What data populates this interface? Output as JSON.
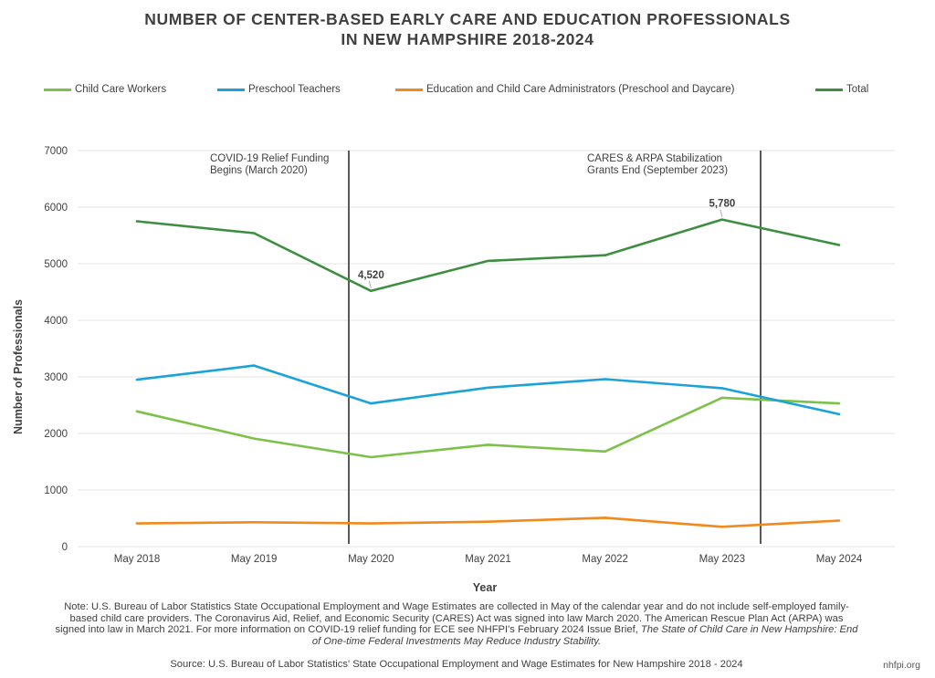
{
  "title_line1": "NUMBER OF CENTER-BASED EARLY CARE AND EDUCATION PROFESSIONALS",
  "title_line2": "IN NEW HAMPSHIRE 2018-2024",
  "legend": [
    {
      "label": "Child Care Workers",
      "color": "#7dc14a"
    },
    {
      "label": "Preschool Teachers",
      "color": "#1ba3d9"
    },
    {
      "label": "Education and Child Care Administrators (Preschool and Daycare)",
      "color": "#f2891d"
    },
    {
      "label": "Total",
      "color": "#3e8e41"
    }
  ],
  "chart_data": {
    "type": "line",
    "xlabel": "Year",
    "ylabel": "Number of Professionals",
    "categories": [
      "May 2018",
      "May 2019",
      "May 2020",
      "May 2021",
      "May 2022",
      "May 2023",
      "May 2024"
    ],
    "ylim": [
      0,
      7000
    ],
    "yticks": [
      0,
      1000,
      2000,
      3000,
      4000,
      5000,
      6000,
      7000
    ],
    "grid": true,
    "series": [
      {
        "name": "Child Care Workers",
        "color": "#7dc14a",
        "values": [
          2390,
          1910,
          1580,
          1800,
          1680,
          2630,
          2530
        ]
      },
      {
        "name": "Preschool Teachers",
        "color": "#1ba3d9",
        "values": [
          2950,
          3200,
          2530,
          2810,
          2960,
          2800,
          2340
        ]
      },
      {
        "name": "Education and Child Care Administrators (Preschool and Daycare)",
        "color": "#f2891d",
        "values": [
          410,
          430,
          410,
          440,
          510,
          350,
          460
        ]
      },
      {
        "name": "Total",
        "color": "#3e8e41",
        "values": [
          5750,
          5540,
          4520,
          5050,
          5150,
          5780,
          5330
        ]
      }
    ],
    "data_labels": [
      {
        "series": "Total",
        "category": "May 2020",
        "text": "4,520"
      },
      {
        "series": "Total",
        "category": "May 2023",
        "text": "5,780"
      }
    ],
    "annotations": [
      {
        "at": "between May 2019 and May 2020",
        "text_lines": [
          "COVID-19 Relief Funding",
          "Begins (March 2020)"
        ]
      },
      {
        "at": "between May 2023 and May 2024",
        "text_lines": [
          "CARES & ARPA Stabilization",
          "Grants End (September 2023)"
        ]
      }
    ]
  },
  "note": {
    "text": "Note: U.S. Bureau of Labor Statistics State Occupational Employment and Wage Estimates are collected in May of the calendar year and do not include self-employed family-based child care providers. The Coronavirus Aid, Relief, and Economic Security (CARES) Act was signed into law March 2020. The American Rescue Plan Act (ARPA) was signed into law in March 2021. For more information on COVID-19 relief funding for ECE see NHFPI's February 2024 Issue Brief, ",
    "italic": "The State of Child Care in New Hampshire: End of One-time Federal Investments May Reduce Industry Stability."
  },
  "source": "Source: U.S. Bureau of Labor Statistics' State Occupational Employment and Wage Estimates for New Hampshire 2018 - 2024",
  "site": "nhfpi.org"
}
